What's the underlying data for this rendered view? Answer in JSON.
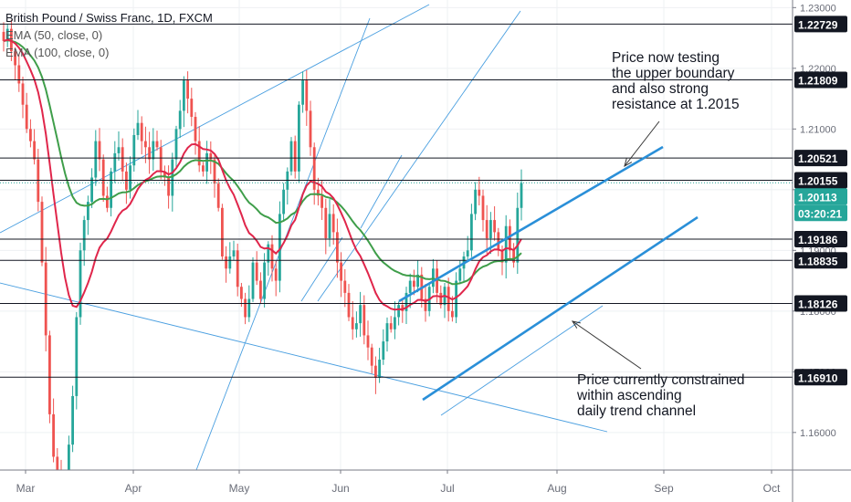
{
  "chart_data": {
    "type": "candlestick",
    "title": "British Pound / Swiss Franc, 1D, FXCM",
    "indicators": [
      {
        "label": "EMA (50, close, 0)",
        "color": "#e0264b"
      },
      {
        "label": "EMA (100, close, 0)",
        "color": "#3f9e4a"
      }
    ],
    "y_ticks": [
      "1.23000",
      "1.22000",
      "1.21000",
      "1.20000",
      "1.19000",
      "1.18000",
      "1.17000",
      "1.16000"
    ],
    "ylim": [
      1.1505,
      1.2305
    ],
    "x_ticks": [
      "Mar",
      "Apr",
      "May",
      "Jun",
      "Jul",
      "Aug",
      "Sep",
      "Oct"
    ],
    "level_lines": [
      {
        "label": "1.22729",
        "value": 1.22729
      },
      {
        "label": "1.21809",
        "value": 1.21809
      },
      {
        "label": "1.20521",
        "value": 1.20521
      },
      {
        "label": "1.20155",
        "value": 1.20155
      },
      {
        "label": "1.19186",
        "value": 1.19186
      },
      {
        "label": "1.18835",
        "value": 1.18835
      },
      {
        "label": "1.18126",
        "value": 1.18126
      },
      {
        "label": "1.16910",
        "value": 1.1691
      }
    ],
    "last_price": {
      "label": "1.20113",
      "value": 1.20113
    },
    "countdown": "03:20:21",
    "annotations": [
      {
        "lines": [
          "Price now testing",
          "the upper boundary",
          "and also strong",
          "resistance at 1.2015"
        ]
      },
      {
        "lines": [
          "Price currently constrained",
          "within ascending",
          "daily trend channel"
        ]
      }
    ],
    "colors": {
      "up": "#26a69a",
      "down": "#ef5350",
      "ema50": "#e0264b",
      "ema100": "#3f9e4a",
      "channel": "#2a8fd8",
      "trendline": "#4a9fe0",
      "price_label": "#26a69a",
      "level_label": "#131722"
    },
    "closes": [
      1.2245,
      1.2265,
      1.2228,
      1.2205,
      1.2175,
      1.214,
      1.21,
      1.208,
      1.205,
      1.198,
      1.188,
      1.176,
      1.163,
      1.156,
      1.1535,
      1.1485,
      1.151,
      1.158,
      1.166,
      1.179,
      1.19,
      1.195,
      1.198,
      1.202,
      1.208,
      1.205,
      1.199,
      1.197,
      1.203,
      1.206,
      1.207,
      1.203,
      1.2,
      1.204,
      1.209,
      1.211,
      1.208,
      1.207,
      1.205,
      1.208,
      1.207,
      1.203,
      1.202,
      1.199,
      1.205,
      1.21,
      1.213,
      1.218,
      1.215,
      1.212,
      1.208,
      1.204,
      1.203,
      1.206,
      1.205,
      1.201,
      1.197,
      1.189,
      1.187,
      1.189,
      1.19,
      1.184,
      1.182,
      1.179,
      1.182,
      1.188,
      1.185,
      1.182,
      1.188,
      1.191,
      1.187,
      1.185,
      1.196,
      1.2,
      1.203,
      1.208,
      1.203,
      1.214,
      1.218,
      1.213,
      1.207,
      1.2,
      1.199,
      1.197,
      1.192,
      1.196,
      1.193,
      1.188,
      1.185,
      1.183,
      1.179,
      1.177,
      1.178,
      1.181,
      1.176,
      1.174,
      1.171,
      1.169,
      1.172,
      1.175,
      1.178,
      1.177,
      1.179,
      1.181,
      1.18,
      1.183,
      1.185,
      1.184,
      1.186,
      1.182,
      1.18,
      1.184,
      1.187,
      1.183,
      1.181,
      1.184,
      1.18,
      1.179,
      1.185,
      1.187,
      1.189,
      1.19,
      1.196,
      1.2,
      1.199,
      1.195,
      1.192,
      1.195,
      1.193,
      1.19,
      1.188,
      1.194,
      1.19,
      1.188,
      1.197,
      1.2011
    ]
  }
}
